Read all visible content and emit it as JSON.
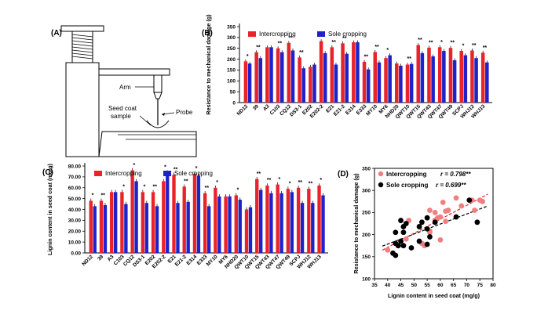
{
  "panel_a": {
    "label": "(A)",
    "arm_label": "Arm",
    "probe_label": "Probe",
    "seed_coat_label_1": "Seed coat",
    "seed_coat_label_2": "sample"
  },
  "colors": {
    "intercropping": "#e8232a",
    "sole": "#1f22c8",
    "scatter_inter": "#f08080",
    "scatter_sole": "#000000"
  },
  "chart_data": [
    {
      "panel": "(B)",
      "type": "bar",
      "ylabel": "Resistance to mechanical damage (g)",
      "xlabel": "",
      "ylim": [
        0,
        350
      ],
      "yticks": [
        0,
        50,
        100,
        150,
        200,
        250,
        300,
        350
      ],
      "categories": [
        "ND12",
        "39",
        "A3",
        "C103",
        "CQ12",
        "DS3-1",
        "E202",
        "E202-2",
        "E21",
        "E21-2",
        "E314",
        "E333",
        "MY10",
        "MY6",
        "NHD20",
        "QWT10",
        "QWT15",
        "QWT43",
        "QWT47",
        "QWT49",
        "SCPJ",
        "WHJ12",
        "WHJ13"
      ],
      "series": [
        {
          "name": "Intercropping",
          "values": [
            190,
            232,
            255,
            250,
            275,
            208,
            165,
            283,
            255,
            273,
            278,
            188,
            233,
            205,
            180,
            175,
            265,
            253,
            255,
            252,
            238,
            240,
            230
          ]
        },
        {
          "name": "Sole cropping",
          "values": [
            180,
            205,
            255,
            232,
            240,
            158,
            175,
            228,
            175,
            225,
            278,
            153,
            185,
            218,
            170,
            178,
            228,
            213,
            238,
            195,
            218,
            205,
            185
          ]
        }
      ],
      "significance": [
        "*",
        "**",
        "",
        "**",
        "**",
        "**",
        "",
        "**",
        "**",
        "**",
        "",
        "**",
        "**",
        "*",
        "",
        "**",
        "**",
        "**",
        "*",
        "**",
        "*",
        "**",
        "**"
      ]
    },
    {
      "panel": "(C)",
      "type": "bar",
      "ylabel": "Lignin content in seed coat (mg/g)",
      "xlabel": "",
      "ylim": [
        0,
        80
      ],
      "ytick_labels": [
        "0.00",
        "10.00",
        "20.00",
        "30.00",
        "40.00",
        "50.00",
        "60.00",
        "70.00",
        "80.00"
      ],
      "categories": [
        "ND12",
        "39",
        "A3",
        "C103",
        "CQ12",
        "DS3-1",
        "E202",
        "E202-2",
        "E21",
        "E21-2",
        "E314",
        "E333",
        "MY10",
        "MY6",
        "NHD20",
        "QWT10",
        "QWT15",
        "QWT43",
        "QWT47",
        "QWT49",
        "SCPJ",
        "WHJ12",
        "WHJ13"
      ],
      "series": [
        {
          "name": "Intercropping",
          "values": [
            48,
            48,
            56,
            56,
            76,
            56,
            56,
            66,
            72,
            61,
            73,
            55,
            60,
            52,
            53,
            40,
            68,
            62,
            63,
            59,
            60,
            59,
            62
          ]
        },
        {
          "name": "Sole cropping",
          "values": [
            43,
            44,
            56,
            45,
            66,
            46,
            43,
            74,
            46,
            47,
            71,
            43,
            52,
            52,
            49,
            42,
            58,
            55,
            55,
            56,
            46,
            46,
            53
          ]
        }
      ],
      "significance": [
        "*",
        "**",
        "",
        "*",
        "*",
        "*",
        "**",
        "*",
        "**",
        "**",
        "*",
        "**",
        "*",
        "",
        "*",
        "",
        "**",
        "**",
        "*",
        "*",
        "**",
        "**",
        "*"
      ]
    },
    {
      "panel": "(D)",
      "type": "scatter",
      "xlabel": "Lignin content in seed coat (mg/g)",
      "ylabel": "Resistance to mechanical damage (g)",
      "xlim": [
        35,
        80
      ],
      "ylim": [
        100,
        350
      ],
      "xticks": [
        35,
        40,
        45,
        50,
        55,
        60,
        65,
        70,
        75,
        80
      ],
      "yticks": [
        100,
        150,
        200,
        250,
        300,
        350
      ],
      "series": [
        {
          "name": "Intercropping",
          "r_label": "r = 0.798**",
          "points": [
            [
              40,
              165
            ],
            [
              47,
              190
            ],
            [
              48,
              232
            ],
            [
              53,
              180
            ],
            [
              54,
              175
            ],
            [
              56,
              255
            ],
            [
              56,
              205
            ],
            [
              56,
              208
            ],
            [
              58,
              233
            ],
            [
              58,
              250
            ],
            [
              59,
              238
            ],
            [
              60,
              240
            ],
            [
              60,
              188
            ],
            [
              61,
              273
            ],
            [
              62,
              230
            ],
            [
              62,
              253
            ],
            [
              63,
              255
            ],
            [
              66,
              283
            ],
            [
              68,
              265
            ],
            [
              72,
              278
            ],
            [
              73,
              255
            ],
            [
              75,
              278
            ],
            [
              76,
              275
            ]
          ]
        },
        {
          "name": "Sole cropping",
          "r_label": "r = 0.699**",
          "points": [
            [
              42,
              158
            ],
            [
              43,
              180
            ],
            [
              43,
              153
            ],
            [
              43,
              205
            ],
            [
              44,
              175
            ],
            [
              45,
              185
            ],
            [
              45,
              232
            ],
            [
              46,
              175
            ],
            [
              46,
              218
            ],
            [
              46,
              205
            ],
            [
              47,
              225
            ],
            [
              49,
              170
            ],
            [
              52,
              218
            ],
            [
              52,
              185
            ],
            [
              53,
              228
            ],
            [
              55,
              178
            ],
            [
              55,
              213
            ],
            [
              55,
              238
            ],
            [
              56,
              195
            ],
            [
              58,
              228
            ],
            [
              66,
              240
            ],
            [
              71,
              278
            ],
            [
              74,
              228
            ]
          ]
        }
      ]
    }
  ]
}
